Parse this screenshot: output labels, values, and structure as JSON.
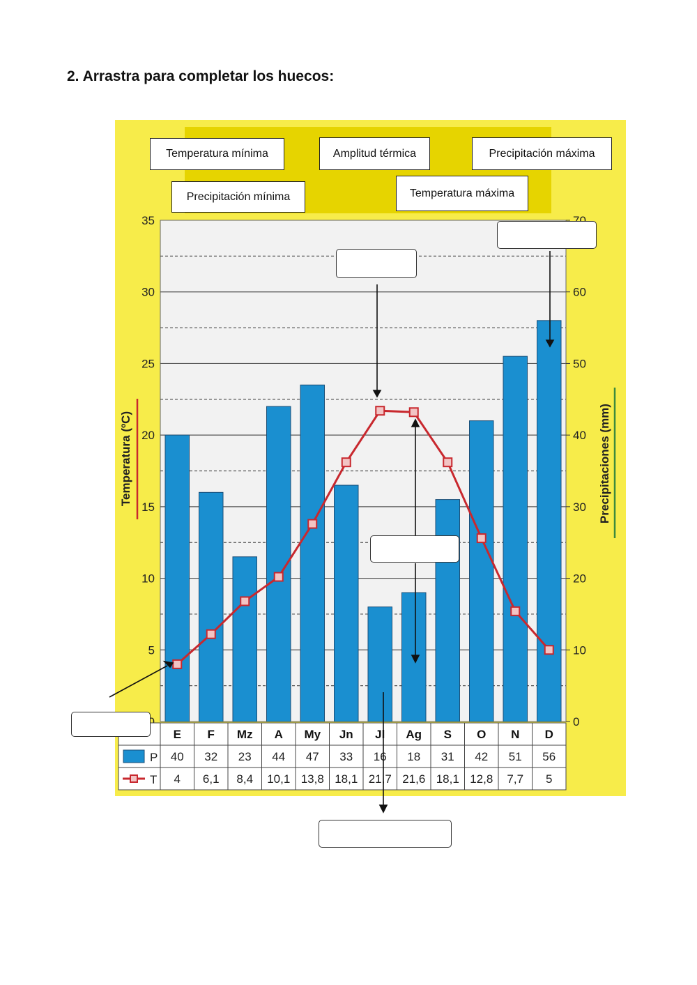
{
  "instruction": "2. Arrastra para completar los huecos:",
  "chips": [
    {
      "label": "Temperatura mínima"
    },
    {
      "label": "Amplitud térmica"
    },
    {
      "label": "Precipitación máxima"
    },
    {
      "label": "Precipitación mínima"
    },
    {
      "label": "Temperatura máxima"
    }
  ],
  "chart_data": {
    "type": "bar+line",
    "categories": [
      "E",
      "F",
      "Mz",
      "A",
      "My",
      "Jn",
      "Jl",
      "Ag",
      "S",
      "O",
      "N",
      "D"
    ],
    "series": [
      {
        "name": "P",
        "type": "bar",
        "axis": "right",
        "color": "#1a8fd0",
        "values": [
          40,
          32,
          23,
          44,
          47,
          33,
          16,
          18,
          31,
          42,
          51,
          56
        ]
      },
      {
        "name": "T",
        "type": "line",
        "axis": "left",
        "color": "#c8282e",
        "values": [
          4,
          6.1,
          8.4,
          10.1,
          13.8,
          18.1,
          21.7,
          21.6,
          18.1,
          12.8,
          7.7,
          5
        ]
      }
    ],
    "table_rows": [
      {
        "key": "P",
        "cells": [
          "40",
          "32",
          "23",
          "44",
          "47",
          "33",
          "16",
          "18",
          "31",
          "42",
          "51",
          "56"
        ]
      },
      {
        "key": "T",
        "cells": [
          "4",
          "6,1",
          "8,4",
          "10,1",
          "13,8",
          "18,1",
          "21,7",
          "21,6",
          "18,1",
          "12,8",
          "7,7",
          "5"
        ]
      }
    ],
    "ylabel_left": "Temperatura (ºC)",
    "ylabel_right": "Precipitaciones (mm)",
    "yticks_left": [
      "0",
      "5",
      "10",
      "15",
      "20",
      "25",
      "30",
      "35"
    ],
    "yticks_right": [
      "0",
      "10",
      "20",
      "30",
      "40",
      "50",
      "60",
      "70"
    ],
    "ylim_left": [
      0,
      35
    ],
    "ylim_right": [
      0,
      70
    ],
    "colors": {
      "background": "#f7ec4a",
      "plot": "#f2f2f2",
      "bar": "#1a8fd0",
      "line": "#c8282e"
    }
  }
}
